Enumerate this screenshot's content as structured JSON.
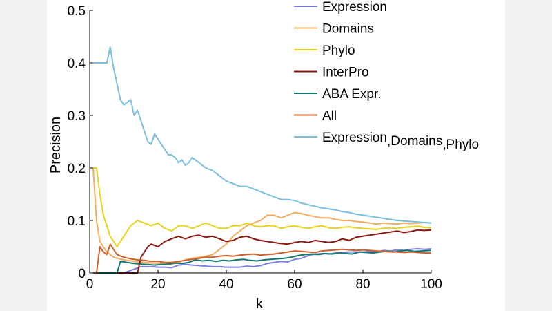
{
  "chart_data": {
    "type": "line",
    "title": "",
    "xlabel": "k",
    "ylabel": "Precision",
    "xlim": [
      0,
      100
    ],
    "ylim": [
      0,
      0.5
    ],
    "x_ticks": [
      0,
      20,
      40,
      60,
      80,
      100
    ],
    "y_ticks": [
      0,
      0.1,
      0.2,
      0.3,
      0.4,
      0.5
    ],
    "grid": false,
    "legend_position": "top-right",
    "series": [
      {
        "name": "Expression",
        "color": "#7b7fe0",
        "x": [
          1,
          10,
          15,
          18,
          20,
          22,
          24,
          26,
          28,
          30,
          32,
          34,
          36,
          38,
          40,
          42,
          44,
          46,
          48,
          50,
          52,
          54,
          56,
          58,
          60,
          62,
          64,
          66,
          68,
          70,
          72,
          74,
          76,
          78,
          80,
          82,
          84,
          86,
          88,
          90,
          92,
          94,
          96,
          98,
          100
        ],
        "y": [
          0,
          0,
          0.012,
          0.012,
          0.011,
          0.011,
          0.01,
          0.015,
          0.016,
          0.015,
          0.014,
          0.013,
          0.012,
          0.012,
          0.011,
          0.011,
          0.011,
          0.013,
          0.012,
          0.014,
          0.018,
          0.02,
          0.022,
          0.021,
          0.026,
          0.028,
          0.033,
          0.036,
          0.037,
          0.036,
          0.038,
          0.039,
          0.04,
          0.04,
          0.04,
          0.041,
          0.04,
          0.043,
          0.042,
          0.044,
          0.043,
          0.045,
          0.046,
          0.045,
          0.046
        ]
      },
      {
        "name": "Domains",
        "color": "#f2ad61",
        "x": [
          1,
          2,
          3,
          4,
          5,
          6,
          7,
          8,
          10,
          12,
          14,
          16,
          18,
          20,
          22,
          24,
          26,
          28,
          30,
          32,
          34,
          36,
          38,
          40,
          42,
          44,
          46,
          48,
          50,
          52,
          54,
          56,
          58,
          60,
          62,
          64,
          66,
          68,
          70,
          72,
          74,
          76,
          78,
          80,
          82,
          84,
          86,
          88,
          90,
          92,
          94,
          96,
          98,
          100
        ],
        "y": [
          0.2,
          0.1,
          0.06,
          0.05,
          0.04,
          0.035,
          0.03,
          0.028,
          0.025,
          0.023,
          0.021,
          0.02,
          0.019,
          0.018,
          0.017,
          0.017,
          0.02,
          0.025,
          0.028,
          0.03,
          0.032,
          0.035,
          0.045,
          0.055,
          0.07,
          0.08,
          0.09,
          0.095,
          0.1,
          0.11,
          0.11,
          0.105,
          0.11,
          0.115,
          0.113,
          0.11,
          0.107,
          0.105,
          0.105,
          0.102,
          0.1,
          0.1,
          0.098,
          0.097,
          0.095,
          0.093,
          0.095,
          0.094,
          0.093,
          0.095,
          0.094,
          0.095,
          0.096,
          0.095
        ]
      },
      {
        "name": "Phylo",
        "color": "#e8d21c",
        "x": [
          1,
          2,
          3,
          4,
          5,
          6,
          7,
          8,
          10,
          12,
          14,
          16,
          18,
          20,
          22,
          24,
          26,
          28,
          30,
          32,
          34,
          36,
          38,
          40,
          42,
          44,
          46,
          48,
          50,
          52,
          54,
          56,
          58,
          60,
          62,
          64,
          66,
          68,
          70,
          72,
          74,
          76,
          78,
          80,
          82,
          84,
          86,
          88,
          90,
          92,
          94,
          96,
          98,
          100
        ],
        "y": [
          0.2,
          0.2,
          0.15,
          0.11,
          0.09,
          0.07,
          0.06,
          0.05,
          0.07,
          0.09,
          0.1,
          0.095,
          0.09,
          0.095,
          0.085,
          0.08,
          0.09,
          0.09,
          0.085,
          0.09,
          0.095,
          0.09,
          0.085,
          0.085,
          0.09,
          0.09,
          0.095,
          0.09,
          0.088,
          0.09,
          0.09,
          0.085,
          0.088,
          0.09,
          0.087,
          0.085,
          0.088,
          0.09,
          0.086,
          0.085,
          0.087,
          0.088,
          0.086,
          0.085,
          0.084,
          0.083,
          0.085,
          0.086,
          0.085,
          0.087,
          0.088,
          0.089,
          0.087,
          0.086
        ]
      },
      {
        "name": "InterPro",
        "color": "#8b1a10",
        "x": [
          1,
          14,
          15,
          17,
          18,
          20,
          22,
          24,
          26,
          28,
          30,
          32,
          34,
          36,
          38,
          40,
          42,
          44,
          46,
          48,
          50,
          52,
          54,
          56,
          58,
          60,
          62,
          64,
          66,
          68,
          70,
          72,
          74,
          76,
          78,
          80,
          82,
          84,
          86,
          88,
          90,
          92,
          94,
          96,
          98,
          100
        ],
        "y": [
          0,
          0,
          0.03,
          0.05,
          0.055,
          0.05,
          0.06,
          0.065,
          0.07,
          0.065,
          0.07,
          0.072,
          0.068,
          0.07,
          0.065,
          0.06,
          0.062,
          0.068,
          0.07,
          0.065,
          0.062,
          0.06,
          0.058,
          0.056,
          0.055,
          0.058,
          0.06,
          0.058,
          0.062,
          0.06,
          0.058,
          0.06,
          0.065,
          0.062,
          0.068,
          0.07,
          0.072,
          0.074,
          0.076,
          0.078,
          0.08,
          0.077,
          0.079,
          0.082,
          0.081,
          0.082
        ]
      },
      {
        "name": "ABA Expr.",
        "color": "#10786e",
        "x": [
          1,
          8,
          9,
          11,
          13,
          15,
          17,
          19,
          21,
          23,
          25,
          27,
          29,
          31,
          33,
          35,
          37,
          39,
          41,
          43,
          45,
          47,
          49,
          51,
          53,
          55,
          57,
          59,
          61,
          63,
          65,
          67,
          69,
          71,
          73,
          75,
          77,
          79,
          81,
          83,
          85,
          87,
          89,
          91,
          93,
          95,
          97,
          100
        ],
        "y": [
          0,
          0,
          0.022,
          0.02,
          0.018,
          0.017,
          0.016,
          0.015,
          0.016,
          0.017,
          0.019,
          0.018,
          0.02,
          0.025,
          0.023,
          0.024,
          0.022,
          0.024,
          0.023,
          0.025,
          0.026,
          0.024,
          0.023,
          0.025,
          0.026,
          0.027,
          0.028,
          0.03,
          0.033,
          0.035,
          0.036,
          0.035,
          0.037,
          0.036,
          0.038,
          0.037,
          0.036,
          0.04,
          0.039,
          0.038,
          0.04,
          0.041,
          0.04,
          0.042,
          0.043,
          0.041,
          0.042,
          0.043
        ]
      },
      {
        "name": "All",
        "color": "#d0602a",
        "x": [
          1,
          2,
          3,
          4,
          5,
          6,
          7,
          8,
          10,
          12,
          14,
          16,
          18,
          20,
          22,
          24,
          26,
          28,
          30,
          32,
          34,
          36,
          38,
          40,
          42,
          44,
          46,
          48,
          50,
          52,
          54,
          56,
          58,
          60,
          62,
          64,
          66,
          68,
          70,
          72,
          74,
          76,
          78,
          80,
          82,
          84,
          86,
          88,
          90,
          92,
          94,
          96,
          98,
          100
        ],
        "y": [
          0,
          0,
          0.05,
          0.04,
          0.035,
          0.055,
          0.045,
          0.035,
          0.03,
          0.027,
          0.025,
          0.024,
          0.022,
          0.022,
          0.02,
          0.02,
          0.022,
          0.024,
          0.026,
          0.028,
          0.03,
          0.03,
          0.032,
          0.033,
          0.032,
          0.034,
          0.035,
          0.036,
          0.034,
          0.035,
          0.036,
          0.038,
          0.04,
          0.042,
          0.041,
          0.04,
          0.039,
          0.042,
          0.043,
          0.044,
          0.045,
          0.044,
          0.043,
          0.044,
          0.043,
          0.042,
          0.041,
          0.04,
          0.04,
          0.039,
          0.04,
          0.039,
          0.038,
          0.038
        ]
      },
      {
        "name": "Expression, Domains, Phylo",
        "color": "#7bbfdf",
        "x": [
          1,
          2,
          3,
          4,
          5,
          6,
          7,
          8,
          9,
          10,
          11,
          12,
          13,
          14,
          15,
          16,
          17,
          18,
          19,
          20,
          21,
          22,
          23,
          24,
          25,
          26,
          27,
          28,
          29,
          30,
          32,
          34,
          36,
          38,
          40,
          42,
          44,
          46,
          48,
          50,
          52,
          54,
          56,
          58,
          60,
          62,
          64,
          66,
          68,
          70,
          72,
          74,
          76,
          78,
          80,
          82,
          84,
          86,
          88,
          90,
          92,
          94,
          96,
          98,
          100
        ],
        "y": [
          0.4,
          0.4,
          0.4,
          0.4,
          0.4,
          0.43,
          0.39,
          0.36,
          0.33,
          0.32,
          0.325,
          0.33,
          0.3,
          0.31,
          0.29,
          0.27,
          0.25,
          0.245,
          0.265,
          0.255,
          0.245,
          0.235,
          0.225,
          0.225,
          0.22,
          0.21,
          0.215,
          0.205,
          0.21,
          0.22,
          0.21,
          0.2,
          0.195,
          0.185,
          0.175,
          0.17,
          0.165,
          0.165,
          0.16,
          0.155,
          0.15,
          0.145,
          0.14,
          0.14,
          0.138,
          0.133,
          0.13,
          0.127,
          0.124,
          0.122,
          0.12,
          0.117,
          0.115,
          0.112,
          0.11,
          0.108,
          0.106,
          0.104,
          0.102,
          0.1,
          0.099,
          0.098,
          0.097,
          0.096,
          0.095
        ]
      }
    ],
    "legend_labels": [
      [
        "Expression"
      ],
      [
        "Domains"
      ],
      [
        "Phylo"
      ],
      [
        "InterPro"
      ],
      [
        "ABA Expr."
      ],
      [
        "All"
      ],
      [
        "Expression",
        ",",
        "Domains",
        ",",
        "Phylo"
      ]
    ]
  }
}
